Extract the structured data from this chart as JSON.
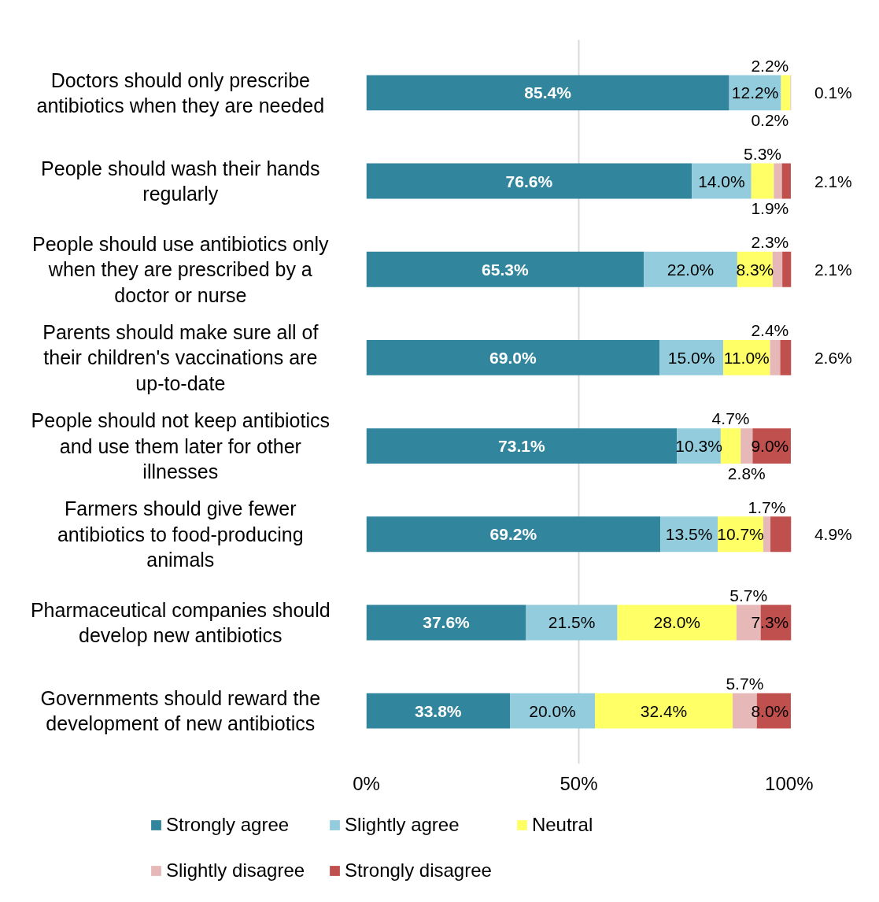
{
  "chart_data": {
    "type": "bar",
    "orientation": "horizontal",
    "stacked": true,
    "categories": [
      "Doctors should only prescribe antibiotics when they are needed",
      "People should wash their hands regularly",
      "People should use antibiotics only when they are prescribed by a doctor or nurse",
      "Parents should make sure all of their children's vaccinations are up-to-date",
      "People should not keep antibiotics and use them later for other illnesses",
      "Farmers should give fewer antibiotics to food-producing animals",
      "Pharmaceutical companies should develop new antibiotics",
      "Governments should reward the development of new antibiotics"
    ],
    "series": [
      {
        "name": "Strongly agree",
        "color": "#31859c",
        "values": [
          85.4,
          76.6,
          65.3,
          69.0,
          73.1,
          69.2,
          37.6,
          33.8
        ],
        "value_labels": [
          "85.4%",
          "76.6%",
          "65.3%",
          "69.0%",
          "73.1%",
          "69.2%",
          "37.6%",
          "33.8%"
        ]
      },
      {
        "name": "Slightly agree",
        "color": "#93cddd",
        "values": [
          12.2,
          14.0,
          22.0,
          15.0,
          10.3,
          13.5,
          21.5,
          20.0
        ],
        "value_labels": [
          "12.2%",
          "14.0%",
          "22.0%",
          "15.0%",
          "10.3%",
          "13.5%",
          "21.5%",
          "20.0%"
        ]
      },
      {
        "name": "Neutral",
        "color": "#ffff66",
        "values": [
          2.2,
          5.3,
          8.3,
          11.0,
          4.7,
          10.7,
          28.0,
          32.4
        ],
        "value_labels": [
          "2.2%",
          "5.3%",
          "8.3%",
          "11.0%",
          "4.7%",
          "10.7%",
          "28.0%",
          "32.4%"
        ]
      },
      {
        "name": "Slightly disagree",
        "color": "#e6b9b8",
        "values": [
          0.2,
          1.9,
          2.3,
          2.4,
          2.8,
          1.7,
          5.7,
          5.7
        ],
        "value_labels": [
          "0.2%",
          "1.9%",
          "2.3%",
          "2.4%",
          "2.8%",
          "1.7%",
          "5.7%",
          "5.7%"
        ]
      },
      {
        "name": "Strongly disagree",
        "color": "#c0504d",
        "values": [
          0.1,
          2.1,
          2.1,
          2.6,
          9.0,
          4.9,
          7.3,
          8.0
        ],
        "value_labels": [
          "0.1%",
          "2.1%",
          "2.1%",
          "2.6%",
          "9.0%",
          "4.9%",
          "7.3%",
          "8.0%"
        ]
      }
    ],
    "xlim": [
      0,
      100
    ],
    "xticks": [
      {
        "value": 0,
        "label": "0%"
      },
      {
        "value": 50,
        "label": "50%"
      },
      {
        "value": 100,
        "label": "100%"
      }
    ],
    "grid": "x",
    "legend": "bottom"
  }
}
